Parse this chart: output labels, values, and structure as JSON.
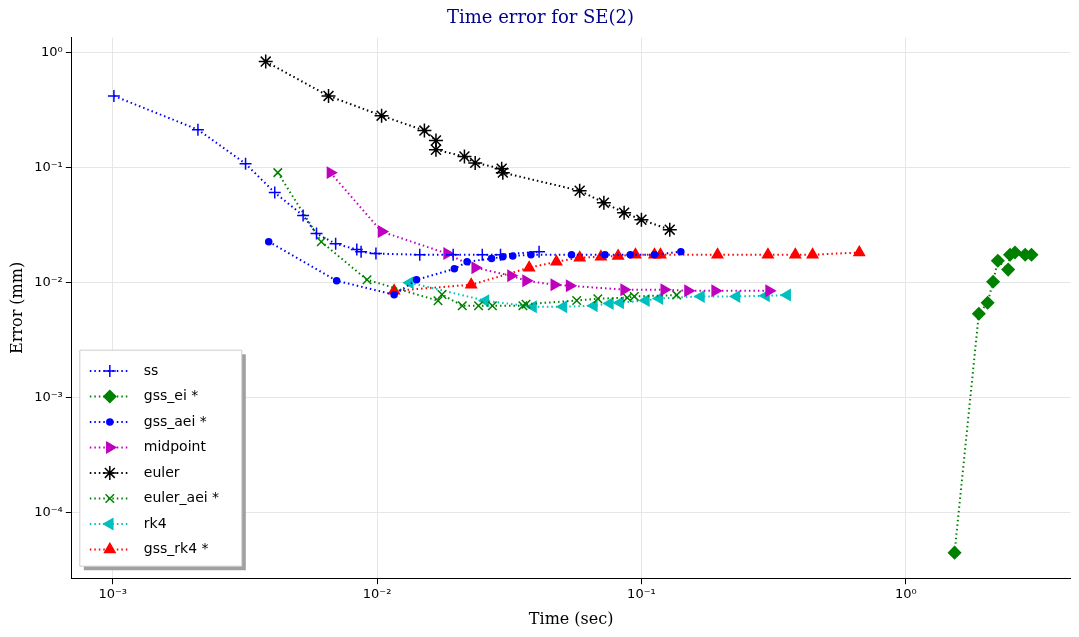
{
  "chart_data": {
    "type": "line",
    "title": "Time error for SE(2)",
    "xlabel": "Time (sec)",
    "ylabel": "Error (mm)",
    "log": "xy",
    "grid": true,
    "legend": "bottom left",
    "line_style": "dotted",
    "xlim": [
      0.0007,
      4.2
    ],
    "ylim": [
      2.7e-05,
      1.35
    ],
    "xticks": [
      {
        "value": 0.001,
        "label": "10⁻³"
      },
      {
        "value": 0.01,
        "label": "10⁻²"
      },
      {
        "value": 0.1,
        "label": "10⁻¹"
      },
      {
        "value": 1,
        "label": "10⁰"
      }
    ],
    "yticks": [
      {
        "value": 0.0001,
        "label": "10⁻⁴"
      },
      {
        "value": 0.001,
        "label": "10⁻³"
      },
      {
        "value": 0.01,
        "label": "10⁻²"
      },
      {
        "value": 0.1,
        "label": "10⁻¹"
      },
      {
        "value": 1,
        "label": "10⁰"
      }
    ],
    "series": [
      {
        "name": "ss",
        "color": "#0000ff",
        "marker": "plus",
        "x": [
          0.00101,
          0.0021,
          0.00318,
          0.0041,
          0.00525,
          0.0059,
          0.00697,
          0.00838,
          0.0087,
          0.0099,
          0.0145,
          0.0194,
          0.025,
          0.0293,
          0.041
        ],
        "values": [
          0.42,
          0.214,
          0.108,
          0.0607,
          0.0383,
          0.0267,
          0.0218,
          0.0194,
          0.0186,
          0.0179,
          0.0175,
          0.0175,
          0.0175,
          0.0175,
          0.0186
        ]
      },
      {
        "name": "gss_ei *",
        "color": "#008000",
        "marker": "diamond",
        "x": [
          1.53,
          1.89,
          2.04,
          2.14,
          2.23,
          2.44,
          2.48,
          2.59,
          2.83,
          2.99
        ],
        "values": [
          4.5e-05,
          0.00537,
          0.0067,
          0.0102,
          0.0155,
          0.013,
          0.0175,
          0.0183,
          0.0175,
          0.0175
        ]
      },
      {
        "name": "gss_aei *",
        "color": "#0000ff",
        "marker": "circle",
        "x": [
          0.00389,
          0.00703,
          0.0116,
          0.0141,
          0.0196,
          0.0219,
          0.0271,
          0.0299,
          0.0326,
          0.0382,
          0.0544,
          0.0728,
          0.0908,
          0.112,
          0.141
        ],
        "values": [
          0.0227,
          0.0104,
          0.00787,
          0.0106,
          0.0132,
          0.0152,
          0.0162,
          0.0168,
          0.0171,
          0.0175,
          0.0175,
          0.0175,
          0.0175,
          0.0175,
          0.0186
        ]
      },
      {
        "name": "midpoint",
        "color": "#bf00bf",
        "marker": "triangle-right",
        "x": [
          0.00666,
          0.0104,
          0.0184,
          0.0235,
          0.0321,
          0.0366,
          0.0468,
          0.0535,
          0.086,
          0.122,
          0.15,
          0.19,
          0.304
        ],
        "values": [
          0.0905,
          0.0278,
          0.0179,
          0.0135,
          0.0115,
          0.0104,
          0.0096,
          0.0094,
          0.0087,
          0.0087,
          0.0085,
          0.0085,
          0.0085
        ]
      },
      {
        "name": "euler",
        "color": "#000000",
        "marker": "cross",
        "x": [
          0.00379,
          0.00655,
          0.0104,
          0.0151,
          0.0167,
          0.0167,
          0.0214,
          0.0235,
          0.0296,
          0.0299,
          0.0584,
          0.0721,
          0.086,
          0.1,
          0.128
        ],
        "values": [
          0.835,
          0.42,
          0.283,
          0.21,
          0.172,
          0.143,
          0.125,
          0.11,
          0.098,
          0.0905,
          0.063,
          0.0496,
          0.0406,
          0.0353,
          0.0289
        ]
      },
      {
        "name": "euler_aei *",
        "color": "#008000",
        "marker": "x",
        "x": [
          0.00421,
          0.00615,
          0.00916,
          0.017,
          0.0176,
          0.021,
          0.0242,
          0.0273,
          0.0356,
          0.0366,
          0.0569,
          0.0684,
          0.0884,
          0.094,
          0.136
        ],
        "values": [
          0.0905,
          0.0227,
          0.0106,
          0.00697,
          0.0079,
          0.0063,
          0.0063,
          0.0063,
          0.0063,
          0.0065,
          0.007,
          0.00726,
          0.0074,
          0.0076,
          0.0078
        ]
      },
      {
        "name": "rk4",
        "color": "#00bfbf",
        "marker": "triangle-left",
        "x": [
          0.0133,
          0.0257,
          0.0389,
          0.0507,
          0.0661,
          0.076,
          0.0831,
          0.104,
          0.117,
          0.168,
          0.229,
          0.296,
          0.356
        ],
        "values": [
          0.01,
          0.00697,
          0.00618,
          0.00618,
          0.0063,
          0.0066,
          0.0067,
          0.007,
          0.0073,
          0.0076,
          0.0076,
          0.0077,
          0.0078
        ]
      },
      {
        "name": "gss_rk4 *",
        "color": "#ff0000",
        "marker": "triangle",
        "x": [
          0.0116,
          0.0227,
          0.0376,
          0.0477,
          0.0584,
          0.0703,
          0.0816,
          0.0949,
          0.112,
          0.118,
          0.194,
          0.301,
          0.382,
          0.444,
          0.667
        ],
        "values": [
          0.0085,
          0.0096,
          0.0135,
          0.0152,
          0.0165,
          0.0168,
          0.0171,
          0.0175,
          0.0175,
          0.0175,
          0.0175,
          0.0175,
          0.0175,
          0.0175,
          0.0183
        ]
      }
    ]
  }
}
